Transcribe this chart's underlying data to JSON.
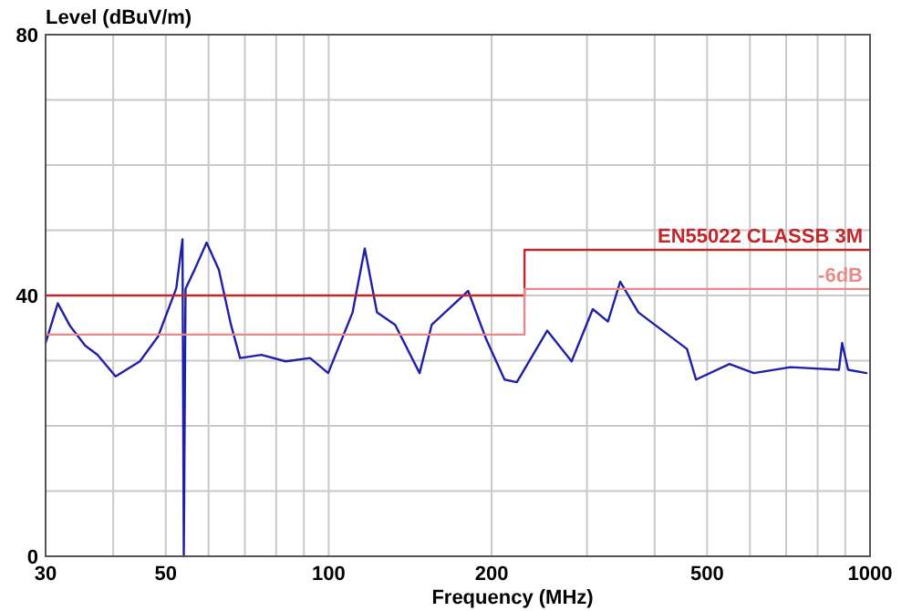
{
  "chart_data": {
    "type": "line",
    "xlabel": "Frequency (MHz)",
    "ylabel": "Level (dBuV/m)",
    "log": "x",
    "grid": true,
    "legend": false,
    "xlim": [
      30,
      1000
    ],
    "ylim": [
      0,
      80
    ],
    "xticks": [
      30,
      {
        "value": 40,
        "label": null
      },
      50,
      {
        "value": 60,
        "label": null
      },
      {
        "value": 70,
        "label": null
      },
      {
        "value": 80,
        "label": null
      },
      {
        "value": 90,
        "label": null
      },
      100,
      200,
      {
        "value": 300,
        "label": null
      },
      {
        "value": 400,
        "label": null
      },
      500,
      {
        "value": 600,
        "label": null
      },
      {
        "value": 700,
        "label": null
      },
      {
        "value": 800,
        "label": null
      },
      {
        "value": 900,
        "label": null
      },
      1000
    ],
    "yticks": [
      0,
      {
        "value": 10,
        "label": null
      },
      {
        "value": 20,
        "label": null
      },
      {
        "value": 30,
        "label": null
      },
      40,
      {
        "value": 50,
        "label": null
      },
      {
        "value": 60,
        "label": null
      },
      {
        "value": 70,
        "label": null
      },
      80
    ],
    "series": [
      {
        "color": "#1f1fa8",
        "x": [
          30,
          31.6,
          33.3,
          35.5,
          37.4,
          40.4,
          44.8,
          48.4,
          52.3,
          53.7,
          54,
          54.4,
          56.5,
          59.5,
          62.7,
          66,
          68.6,
          75.1,
          83.3,
          92.4,
          99.8,
          110.7,
          116.6,
          122.8,
          132.7,
          147.2,
          155,
          181,
          195.6,
          211.3,
          222.6,
          253.3,
          281,
          307.5,
          328,
          345.5,
          373.4,
          414,
          459,
          477,
          550,
          610,
          713,
          876,
          888,
          911,
          985
        ],
        "values": [
          32.7,
          38.8,
          35.3,
          32.3,
          30.9,
          27.6,
          29.9,
          33.7,
          41.1,
          48.6,
          0,
          41,
          43.9,
          48.1,
          43.9,
          35.5,
          30.4,
          30.9,
          29.9,
          30.4,
          28.1,
          37.4,
          47.2,
          37.4,
          35.5,
          28.1,
          35.5,
          40.7,
          33.2,
          27.1,
          26.7,
          34.6,
          29.9,
          37.9,
          36,
          42.1,
          37.4,
          34.6,
          31.8,
          27.1,
          29.5,
          28.1,
          29,
          28.6,
          32.7,
          28.6,
          28.1
        ]
      },
      {
        "type": "step",
        "name": "EN55022 CLASSB 3M",
        "color": "#c0282c",
        "x": [
          30,
          230,
          1000
        ],
        "values": [
          40,
          47,
          47
        ]
      },
      {
        "type": "step",
        "name": "-6dB",
        "color": "#e88a8a",
        "x": [
          30,
          230,
          1000
        ],
        "values": [
          34,
          41,
          41
        ]
      }
    ]
  }
}
